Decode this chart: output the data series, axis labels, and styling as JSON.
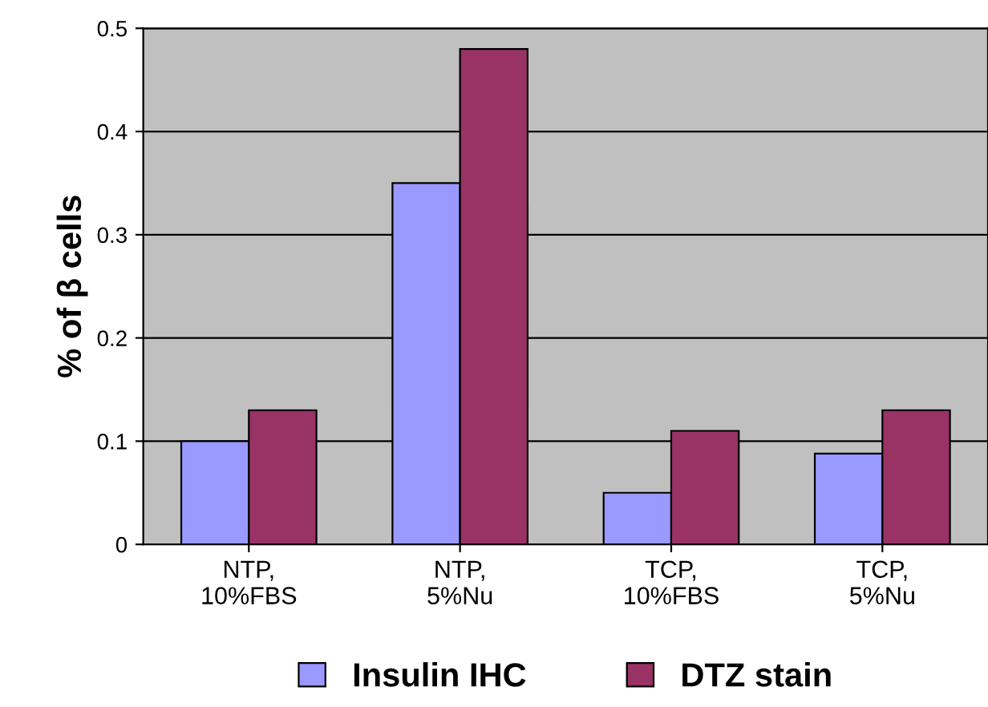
{
  "chart_data": {
    "type": "bar",
    "ylabel": "% of β cells",
    "categories": [
      "NTP,\n10%FBS",
      "NTP,\n5%Nu",
      "TCP,\n10%FBS",
      "TCP,\n5%Nu"
    ],
    "series": [
      {
        "name": "Insulin IHC",
        "color": "#9999ff",
        "values": [
          0.1,
          0.35,
          0.05,
          0.088
        ]
      },
      {
        "name": "DTZ stain",
        "color": "#993366",
        "values": [
          0.13,
          0.48,
          0.11,
          0.13
        ]
      }
    ],
    "ylim": [
      0,
      0.5
    ],
    "yticks": [
      0,
      0.1,
      0.2,
      0.3,
      0.4,
      0.5
    ],
    "grid": "y",
    "legend": "bottom"
  }
}
